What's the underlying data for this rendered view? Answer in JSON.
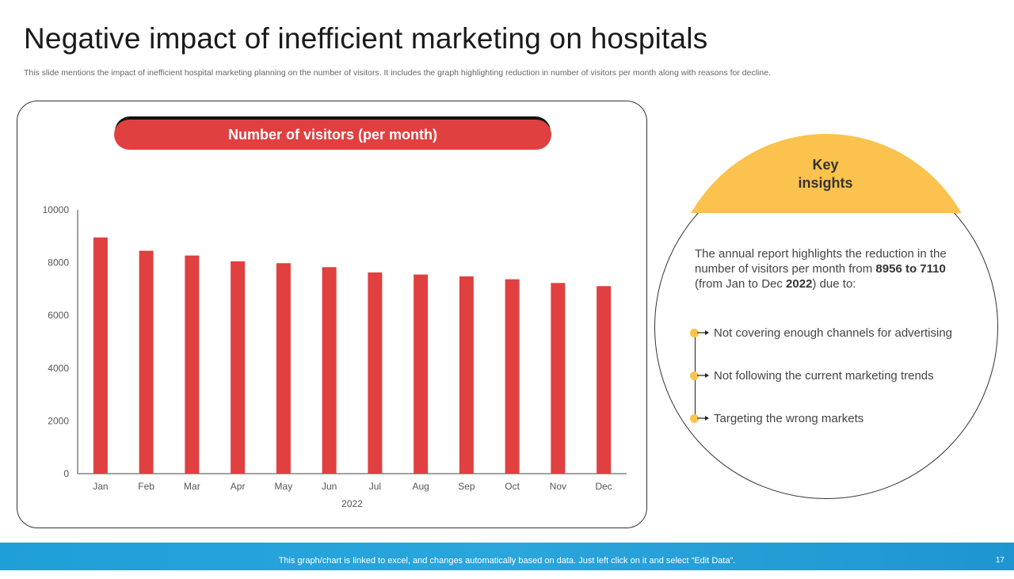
{
  "slide": {
    "title": "Negative impact of inefficient marketing on hospitals",
    "subtitle": "This slide mentions the impact of inefficient hospital marketing planning on the number of visitors. It includes the graph highlighting reduction in number of visitors per month along with reasons for decline.",
    "page_number": "17"
  },
  "chart_header": "Number of visitors (per month)",
  "colors": {
    "bar": "#e04040",
    "accent_yellow": "#fbc34d",
    "footer": "#1f9fd8"
  },
  "chart_data": {
    "type": "bar",
    "title": "Number of visitors (per month)",
    "categories": [
      "Jan",
      "Feb",
      "Mar",
      "Apr",
      "May",
      "Jun",
      "Jul",
      "Aug",
      "Sep",
      "Oct",
      "Nov",
      "Dec"
    ],
    "values": [
      8956,
      8450,
      8270,
      8050,
      7980,
      7830,
      7630,
      7550,
      7480,
      7370,
      7230,
      7110
    ],
    "xlabel": "2022",
    "ylabel": "",
    "ylim": [
      0,
      10000
    ],
    "yticks": [
      0,
      2000,
      4000,
      6000,
      8000,
      10000
    ],
    "grid": false
  },
  "insights": {
    "title_line1": "Key",
    "title_line2": "insights",
    "summary_prefix": "The annual report highlights the reduction in the number of visitors per month from ",
    "summary_bold1": "8956 to 7110",
    "summary_mid": " (from Jan to Dec ",
    "summary_bold2": "2022",
    "summary_suffix": ") due to:",
    "reasons": [
      "Not covering enough channels for advertising",
      "Not following the current marketing trends",
      "Targeting the wrong markets"
    ]
  },
  "footer_note": "This graph/chart is linked to excel, and changes automatically based on data. Just left click on it and select “Edit Data”."
}
